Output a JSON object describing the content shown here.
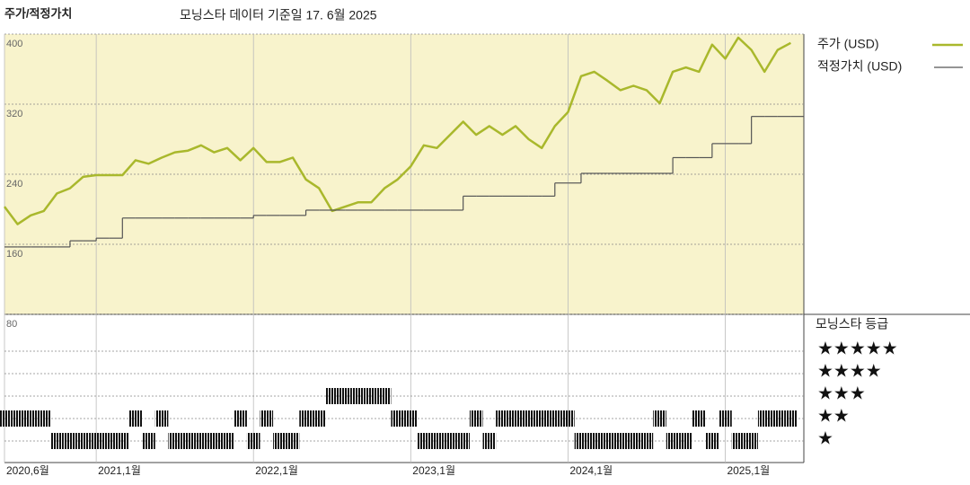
{
  "chart_data": {
    "type": "line",
    "title": "주가/적정가치",
    "subtitle": "모닝스타 데이터 기준일 17. 6월 2025",
    "x": [
      "2020-06",
      "2020-07",
      "2020-08",
      "2020-09",
      "2020-10",
      "2020-11",
      "2020-12",
      "2021-01",
      "2021-02",
      "2021-03",
      "2021-04",
      "2021-05",
      "2021-06",
      "2021-07",
      "2021-08",
      "2021-09",
      "2021-10",
      "2021-11",
      "2021-12",
      "2022-01",
      "2022-02",
      "2022-03",
      "2022-04",
      "2022-05",
      "2022-06",
      "2022-07",
      "2022-08",
      "2022-09",
      "2022-10",
      "2022-11",
      "2022-12",
      "2023-01",
      "2023-02",
      "2023-03",
      "2023-04",
      "2023-05",
      "2023-06",
      "2023-07",
      "2023-08",
      "2023-09",
      "2023-10",
      "2023-11",
      "2023-12",
      "2024-01",
      "2024-02",
      "2024-03",
      "2024-04",
      "2024-05",
      "2024-06",
      "2024-07",
      "2024-08",
      "2024-09",
      "2024-10",
      "2024-11",
      "2024-12",
      "2025-01",
      "2025-02",
      "2025-03",
      "2025-04",
      "2025-05",
      "2025-06"
    ],
    "series": [
      {
        "name": "주가 (USD)",
        "color": "#a9b82c",
        "style": "line",
        "values": [
          203,
          183,
          193,
          198,
          218,
          224,
          237,
          239,
          239,
          239,
          256,
          252,
          259,
          265,
          267,
          273,
          265,
          270,
          256,
          270,
          254,
          254,
          259,
          234,
          224,
          198,
          203,
          208,
          208,
          224,
          234,
          249,
          273,
          270,
          285,
          300,
          285,
          295,
          285,
          295,
          280,
          270,
          295,
          311,
          352,
          357,
          347,
          336,
          341,
          336,
          321,
          357,
          362,
          357,
          388,
          372,
          396,
          382,
          357,
          382,
          390
        ]
      },
      {
        "name": "적정가치 (USD)",
        "color": "#555555",
        "style": "step",
        "values": [
          157,
          157,
          157,
          157,
          157,
          164,
          164,
          167,
          167,
          190,
          190,
          190,
          190,
          190,
          190,
          190,
          190,
          190,
          190,
          193,
          193,
          193,
          193,
          199,
          199,
          199,
          199,
          199,
          199,
          199,
          199,
          199,
          199,
          199,
          199,
          215,
          215,
          215,
          215,
          215,
          215,
          215,
          230,
          230,
          241,
          241,
          241,
          241,
          241,
          241,
          241,
          259,
          259,
          259,
          275,
          275,
          275,
          306,
          306,
          306,
          306
        ]
      }
    ],
    "xlim": [
      "2020-06",
      "2025-07"
    ],
    "xticks": [
      {
        "value": "2020-06",
        "label": "2020,6월"
      },
      {
        "value": "2021-01",
        "label": "2021,1월"
      },
      {
        "value": "2022-01",
        "label": "2022,1월"
      },
      {
        "value": "2023-01",
        "label": "2023,1월"
      },
      {
        "value": "2024-01",
        "label": "2024,1월"
      },
      {
        "value": "2025-01",
        "label": "2025,1월"
      }
    ],
    "ylim": [
      80,
      400
    ],
    "yticks": [
      80,
      160,
      240,
      320,
      400
    ],
    "grid": true,
    "ratings": {
      "name": "모닝스타 등급",
      "levels": [
        "★",
        "★★",
        "★★★",
        "★★★★",
        "★★★★★"
      ],
      "values": [
        2,
        2,
        2,
        2,
        1,
        1,
        1,
        1,
        1,
        1,
        2,
        1,
        2,
        1,
        1,
        1,
        1,
        1,
        2,
        1,
        2,
        1,
        1,
        2,
        2,
        3,
        3,
        3,
        3,
        3,
        2,
        2,
        1,
        1,
        1,
        1,
        2,
        1,
        2,
        2,
        2,
        2,
        2,
        2,
        1,
        1,
        1,
        1,
        1,
        1,
        2,
        1,
        1,
        2,
        1,
        2,
        1,
        1,
        2,
        2,
        2
      ]
    }
  }
}
